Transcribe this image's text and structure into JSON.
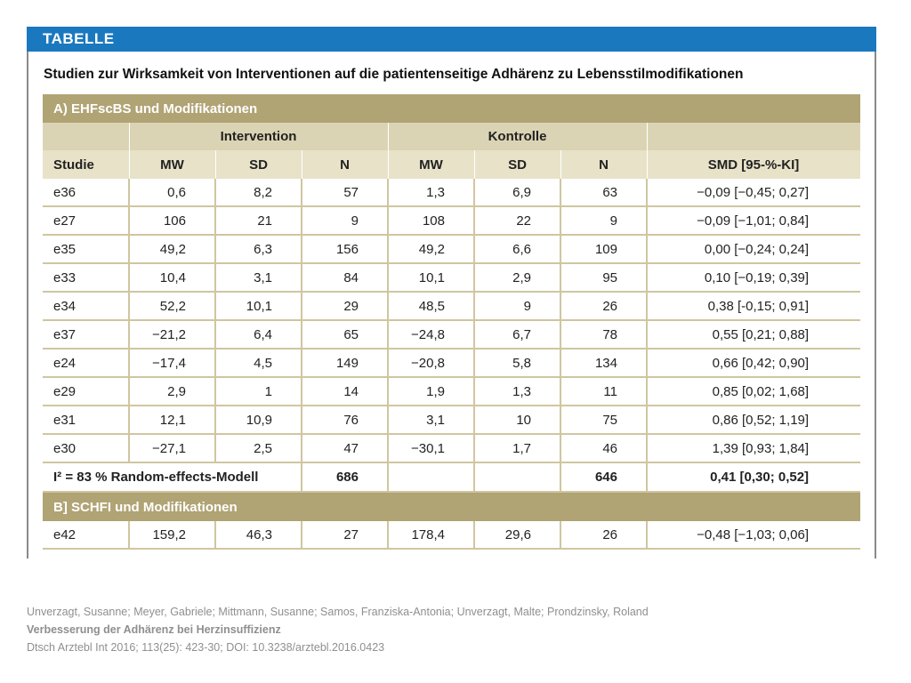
{
  "header": {
    "label": "TABELLE"
  },
  "caption": "Studien zur Wirksamkeit von Interventionen auf die patientenseitige Adhärenz zu Lebensstilmodifikationen",
  "section_a": {
    "title": "A) EHFscBS und Modifikationen"
  },
  "groups": {
    "intervention": "Intervention",
    "kontrolle": "Kontrolle"
  },
  "columns": [
    "Studie",
    "MW",
    "SD",
    "N",
    "MW",
    "SD",
    "N",
    "SMD [95-%-KI]"
  ],
  "rows_a": [
    [
      "e36",
      "0,6",
      "8,2",
      "57",
      "1,3",
      "6,9",
      "63",
      "−0,09 [−0,45; 0,27]"
    ],
    [
      "e27",
      "106",
      "21",
      "9",
      "108",
      "22",
      "9",
      "−0,09 [−1,01; 0,84]"
    ],
    [
      "e35",
      "49,2",
      "6,3",
      "156",
      "49,2",
      "6,6",
      "109",
      "0,00 [−0,24; 0,24]"
    ],
    [
      "e33",
      "10,4",
      "3,1",
      "84",
      "10,1",
      "2,9",
      "95",
      "0,10 [−0,19; 0,39]"
    ],
    [
      "e34",
      "52,2",
      "10,1",
      "29",
      "48,5",
      "9",
      "26",
      "0,38 [-0,15; 0,91]"
    ],
    [
      "e37",
      "−21,2",
      "6,4",
      "65",
      "−24,8",
      "6,7",
      "78",
      "0,55 [0,21; 0,88]"
    ],
    [
      "e24",
      "−17,4",
      "4,5",
      "149",
      "−20,8",
      "5,8",
      "134",
      "0,66 [0,42; 0,90]"
    ],
    [
      "e29",
      "2,9",
      "1",
      "14",
      "1,9",
      "1,3",
      "11",
      "0,85 [0,02; 1,68]"
    ],
    [
      "e31",
      "12,1",
      "10,9",
      "76",
      "3,1",
      "10",
      "75",
      "0,86 [0,52; 1,19]"
    ],
    [
      "e30",
      "−27,1",
      "2,5",
      "47",
      "−30,1",
      "1,7",
      "46",
      "1,39 [0,93; 1,84]"
    ]
  ],
  "summary_a": {
    "label": "I² = 83 % Random-effects-Modell",
    "n_int": "686",
    "n_kon": "646",
    "smd": "0,41 [0,30; 0,52]"
  },
  "section_b": {
    "title": "B] SCHFI und Modifikationen"
  },
  "rows_b": [
    [
      "e42",
      "159,2",
      "46,3",
      "27",
      "178,4",
      "29,6",
      "26",
      "−0,48 [−1,03; 0,06]"
    ]
  ],
  "citation": {
    "authors": "Unverzagt, Susanne; Meyer, Gabriele; Mittmann, Susanne; Samos, Franziska-Antonia; Unverzagt, Malte; Prondzinsky, Roland",
    "title": "Verbesserung der Adhärenz bei Herzinsuffizienz",
    "source": "Dtsch Arztebl Int 2016; 113(25): 423-30; DOI: 10.3238/arztebl.2016.0423"
  }
}
